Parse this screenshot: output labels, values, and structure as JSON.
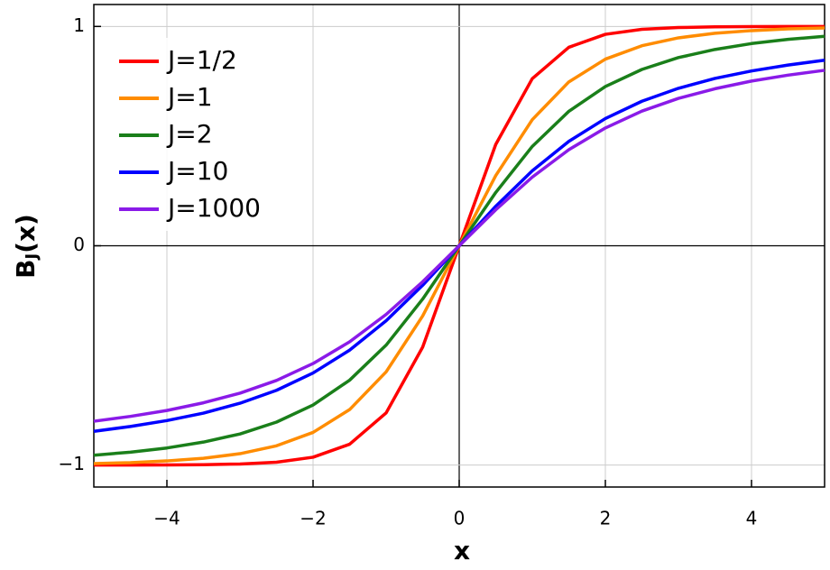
{
  "chart_data": {
    "type": "line",
    "xlabel": "x",
    "ylabel": [
      "B",
      "J",
      "(x)"
    ],
    "x": [
      -5,
      -4.5,
      -4,
      -3.5,
      -3,
      -2.5,
      -2,
      -1.5,
      -1,
      -0.5,
      0,
      0.5,
      1,
      1.5,
      2,
      2.5,
      3,
      3.5,
      4,
      4.5,
      5
    ],
    "series": [
      {
        "name": "J=1/2",
        "color": "#ff0000",
        "values": [
          -1.0,
          -1.0,
          -0.999,
          -0.998,
          -0.995,
          -0.987,
          -0.964,
          -0.905,
          -0.762,
          -0.462,
          0,
          0.462,
          0.762,
          0.905,
          0.964,
          0.987,
          0.995,
          0.998,
          0.999,
          1.0,
          1.0
        ]
      },
      {
        "name": "J=1",
        "color": "#ff8c00",
        "values": [
          -0.993,
          -0.989,
          -0.981,
          -0.969,
          -0.948,
          -0.912,
          -0.851,
          -0.747,
          -0.575,
          -0.32,
          0,
          0.32,
          0.575,
          0.747,
          0.851,
          0.912,
          0.948,
          0.969,
          0.981,
          0.989,
          0.993
        ]
      },
      {
        "name": "J=2",
        "color": "#1a7f1a",
        "values": [
          -0.955,
          -0.941,
          -0.922,
          -0.895,
          -0.858,
          -0.804,
          -0.726,
          -0.613,
          -0.453,
          -0.243,
          0,
          0.243,
          0.453,
          0.613,
          0.726,
          0.804,
          0.858,
          0.895,
          0.922,
          0.941,
          0.955
        ]
      },
      {
        "name": "J=10",
        "color": "#0000ff",
        "values": [
          -0.846,
          -0.824,
          -0.797,
          -0.763,
          -0.718,
          -0.659,
          -0.58,
          -0.476,
          -0.342,
          -0.18,
          0,
          0.18,
          0.342,
          0.476,
          0.58,
          0.659,
          0.718,
          0.763,
          0.797,
          0.824,
          0.846
        ]
      },
      {
        "name": "J=1000",
        "color": "#8a1be8",
        "values": [
          -0.8,
          -0.778,
          -0.751,
          -0.716,
          -0.672,
          -0.614,
          -0.537,
          -0.438,
          -0.313,
          -0.164,
          0,
          0.164,
          0.313,
          0.438,
          0.537,
          0.614,
          0.672,
          0.716,
          0.751,
          0.778,
          0.8
        ]
      }
    ],
    "xlim": [
      -5,
      5
    ],
    "ylim": [
      -1.1,
      1.1
    ],
    "xticks": [
      {
        "value": -4,
        "label": "−4"
      },
      {
        "value": -2,
        "label": "−2"
      },
      0,
      2,
      4
    ],
    "yticks": [
      {
        "value": -1,
        "label": "−1"
      },
      0,
      1
    ],
    "grid": true,
    "legend": "upper left"
  }
}
